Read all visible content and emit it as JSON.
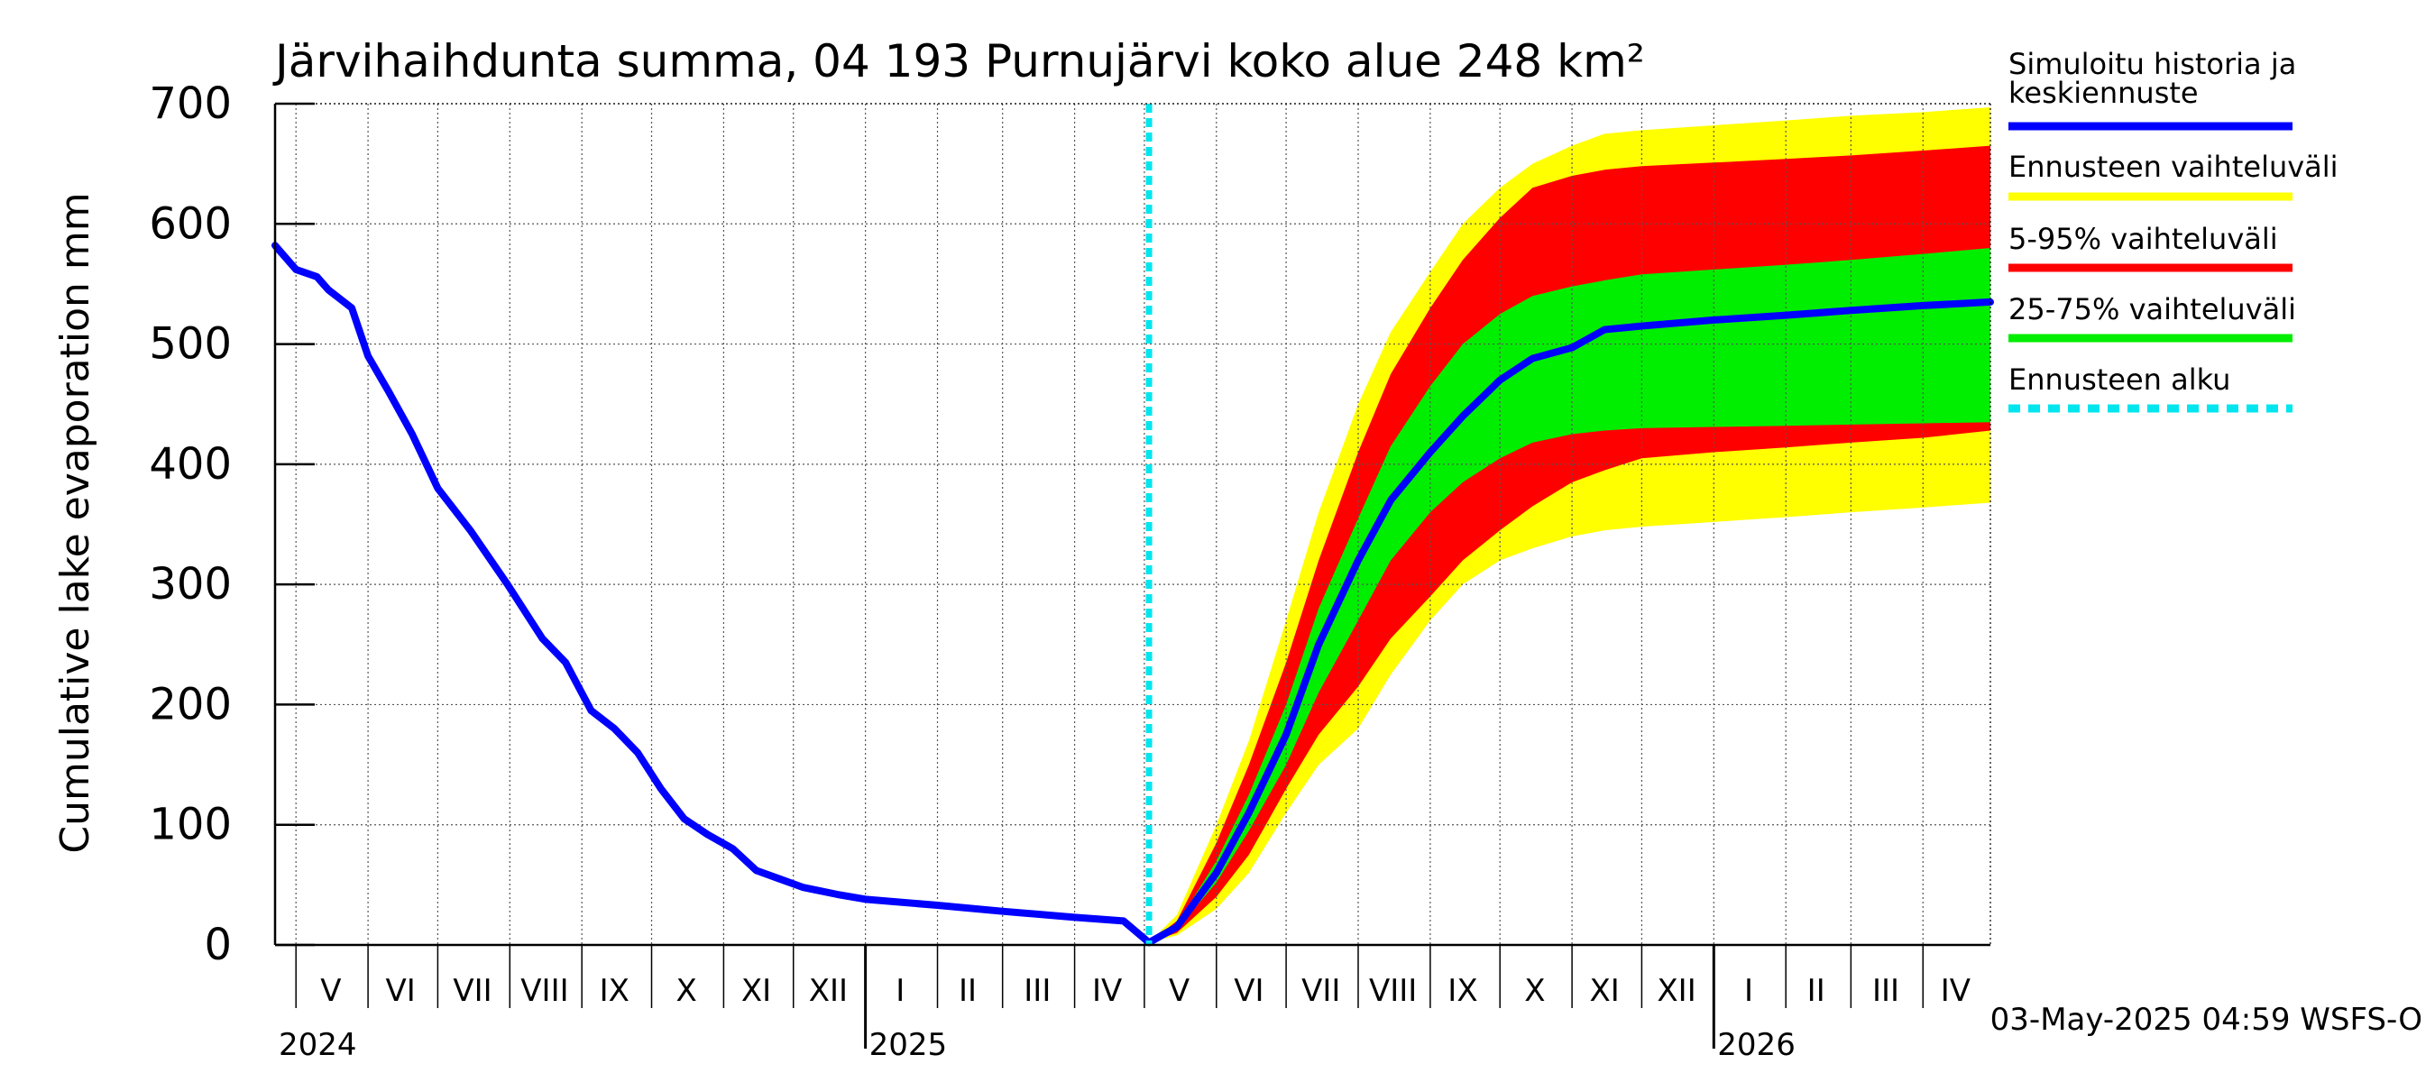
{
  "chart_data": {
    "type": "line",
    "title": "Järvihaihdunta summa, 04 193 Purnujärvi koko alue 248 km²",
    "ylabel": "Cumulative lake evaporation   mm",
    "ylim": [
      0,
      700
    ],
    "yticks": [
      "0",
      "100",
      "200",
      "300",
      "400",
      "500",
      "600",
      "700"
    ],
    "x_range": [
      "2024-04-22",
      "2026-04-30"
    ],
    "month_labels": [
      {
        "label": "V",
        "date": "2024-05-16"
      },
      {
        "label": "VI",
        "date": "2024-06-15"
      },
      {
        "label": "VII",
        "date": "2024-07-16"
      },
      {
        "label": "VIII",
        "date": "2024-08-16"
      },
      {
        "label": "IX",
        "date": "2024-09-15"
      },
      {
        "label": "X",
        "date": "2024-10-16"
      },
      {
        "label": "XI",
        "date": "2024-11-15"
      },
      {
        "label": "XII",
        "date": "2024-12-16"
      },
      {
        "label": "I",
        "date": "2025-01-16"
      },
      {
        "label": "II",
        "date": "2025-02-14"
      },
      {
        "label": "III",
        "date": "2025-03-16"
      },
      {
        "label": "IV",
        "date": "2025-04-15"
      },
      {
        "label": "V",
        "date": "2025-05-16"
      },
      {
        "label": "VI",
        "date": "2025-06-15"
      },
      {
        "label": "VII",
        "date": "2025-07-16"
      },
      {
        "label": "VIII",
        "date": "2025-08-16"
      },
      {
        "label": "IX",
        "date": "2025-09-15"
      },
      {
        "label": "X",
        "date": "2025-10-16"
      },
      {
        "label": "XI",
        "date": "2025-11-15"
      },
      {
        "label": "XII",
        "date": "2025-12-16"
      },
      {
        "label": "I",
        "date": "2026-01-16"
      },
      {
        "label": "II",
        "date": "2026-02-14"
      },
      {
        "label": "III",
        "date": "2026-03-16"
      },
      {
        "label": "IV",
        "date": "2026-04-15"
      }
    ],
    "year_labels": [
      {
        "label": "2024",
        "date": "2024-04-22"
      },
      {
        "label": "2025",
        "date": "2025-01-01"
      },
      {
        "label": "2026",
        "date": "2026-01-01"
      }
    ],
    "forecast_start": "2025-05-03",
    "timestamp": "03-May-2025 04:59 WSFS-O",
    "colors": {
      "history": "#0000ff",
      "range_full": "#ffff00",
      "range_5_95": "#ff0000",
      "range_25_75": "#00ee00",
      "forecast_start": "#00e5ee"
    },
    "legend": [
      {
        "label_lines": [
          "Simuloitu historia ja",
          "keskiennuste"
        ],
        "color": "#0000ff",
        "style": "solid"
      },
      {
        "label_lines": [
          "Ennusteen vaihteluväli"
        ],
        "color": "#ffff00",
        "style": "solid"
      },
      {
        "label_lines": [
          "5-95% vaihteluväli"
        ],
        "color": "#ff0000",
        "style": "solid"
      },
      {
        "label_lines": [
          "25-75% vaihteluväli"
        ],
        "color": "#00ee00",
        "style": "solid"
      },
      {
        "label_lines": [
          "Ennusteen alku"
        ],
        "color": "#00e5ee",
        "style": "dashed"
      }
    ],
    "series": [
      {
        "name": "Simuloitu historia ja keskiennuste",
        "points": [
          [
            "2024-04-22",
            582
          ],
          [
            "2024-05-01",
            562
          ],
          [
            "2024-05-10",
            556
          ],
          [
            "2024-05-15",
            545
          ],
          [
            "2024-05-25",
            530
          ],
          [
            "2024-06-01",
            490
          ],
          [
            "2024-06-10",
            460
          ],
          [
            "2024-06-20",
            425
          ],
          [
            "2024-07-01",
            380
          ],
          [
            "2024-07-15",
            345
          ],
          [
            "2024-07-31",
            300
          ],
          [
            "2024-08-15",
            255
          ],
          [
            "2024-08-25",
            235
          ],
          [
            "2024-09-05",
            195
          ],
          [
            "2024-09-15",
            180
          ],
          [
            "2024-09-25",
            160
          ],
          [
            "2024-10-05",
            130
          ],
          [
            "2024-10-15",
            105
          ],
          [
            "2024-10-25",
            92
          ],
          [
            "2024-11-05",
            80
          ],
          [
            "2024-11-15",
            62
          ],
          [
            "2024-11-25",
            55
          ],
          [
            "2024-12-05",
            48
          ],
          [
            "2024-12-20",
            42
          ],
          [
            "2025-01-01",
            38
          ],
          [
            "2025-02-01",
            33
          ],
          [
            "2025-03-01",
            28
          ],
          [
            "2025-04-01",
            23
          ],
          [
            "2025-04-22",
            20
          ],
          [
            "2025-05-03",
            2
          ],
          [
            "2025-05-15",
            15
          ],
          [
            "2025-06-01",
            60
          ],
          [
            "2025-06-15",
            110
          ],
          [
            "2025-07-01",
            175
          ],
          [
            "2025-07-15",
            250
          ],
          [
            "2025-08-01",
            320
          ],
          [
            "2025-08-15",
            370
          ],
          [
            "2025-09-01",
            410
          ],
          [
            "2025-09-15",
            440
          ],
          [
            "2025-10-01",
            470
          ],
          [
            "2025-10-15",
            488
          ],
          [
            "2025-11-01",
            497
          ],
          [
            "2025-11-15",
            512
          ],
          [
            "2025-12-01",
            515
          ],
          [
            "2026-01-01",
            520
          ],
          [
            "2026-02-01",
            524
          ],
          [
            "2026-03-01",
            528
          ],
          [
            "2026-04-01",
            532
          ],
          [
            "2026-04-30",
            535
          ]
        ]
      },
      {
        "name": "Ennusteen vaihteluväli",
        "dates": [
          "2025-05-03",
          "2025-05-15",
          "2025-06-01",
          "2025-06-15",
          "2025-07-01",
          "2025-07-15",
          "2025-08-01",
          "2025-08-15",
          "2025-09-01",
          "2025-09-15",
          "2025-10-01",
          "2025-10-15",
          "2025-11-01",
          "2025-11-15",
          "2025-12-01",
          "2026-01-01",
          "2026-02-01",
          "2026-03-01",
          "2026-04-01",
          "2026-04-30"
        ],
        "upper": [
          2,
          25,
          100,
          170,
          270,
          360,
          450,
          510,
          560,
          600,
          630,
          650,
          665,
          675,
          678,
          682,
          686,
          690,
          693,
          697
        ],
        "lower": [
          2,
          8,
          30,
          60,
          110,
          150,
          180,
          225,
          270,
          300,
          320,
          330,
          340,
          345,
          348,
          352,
          356,
          360,
          364,
          368
        ]
      },
      {
        "name": "5-95% vaihteluväli",
        "dates": [
          "2025-05-03",
          "2025-05-15",
          "2025-06-01",
          "2025-06-15",
          "2025-07-01",
          "2025-07-15",
          "2025-08-01",
          "2025-08-15",
          "2025-09-01",
          "2025-09-15",
          "2025-10-01",
          "2025-10-15",
          "2025-11-01",
          "2025-11-15",
          "2025-12-01",
          "2026-01-01",
          "2026-02-01",
          "2026-03-01",
          "2026-04-01",
          "2026-04-30"
        ],
        "upper": [
          2,
          20,
          85,
          150,
          235,
          320,
          410,
          475,
          530,
          570,
          605,
          630,
          640,
          645,
          648,
          651,
          654,
          657,
          661,
          665
        ],
        "lower": [
          2,
          10,
          40,
          75,
          130,
          175,
          215,
          255,
          290,
          320,
          345,
          365,
          385,
          395,
          405,
          410,
          414,
          418,
          422,
          428
        ]
      },
      {
        "name": "25-75% vaihteluväli",
        "dates": [
          "2025-05-03",
          "2025-05-15",
          "2025-06-01",
          "2025-06-15",
          "2025-07-01",
          "2025-07-15",
          "2025-08-01",
          "2025-08-15",
          "2025-09-01",
          "2025-09-15",
          "2025-10-01",
          "2025-10-15",
          "2025-11-01",
          "2025-11-15",
          "2025-12-01",
          "2026-01-01",
          "2026-02-01",
          "2026-03-01",
          "2026-04-01",
          "2026-04-30"
        ],
        "upper": [
          2,
          17,
          70,
          125,
          200,
          280,
          355,
          415,
          465,
          500,
          525,
          540,
          548,
          553,
          558,
          562,
          566,
          570,
          575,
          580
        ],
        "lower": [
          2,
          13,
          52,
          95,
          150,
          210,
          270,
          320,
          360,
          385,
          405,
          418,
          425,
          428,
          430,
          431,
          432,
          433,
          434,
          435
        ]
      }
    ]
  }
}
